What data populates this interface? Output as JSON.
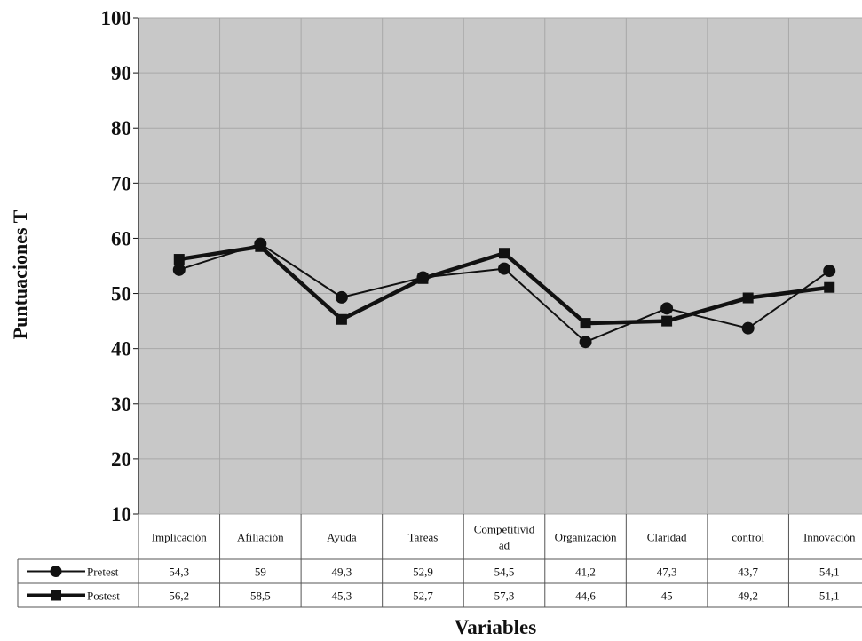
{
  "chart_data": {
    "type": "line",
    "ylabel": "Puntuaciones T",
    "xlabel": "Variables",
    "ylim": [
      10,
      100
    ],
    "yticks": [
      10,
      20,
      30,
      40,
      50,
      60,
      70,
      80,
      90,
      100
    ],
    "grid": true,
    "legend": "data-table-left",
    "categories": [
      [
        "Implicación"
      ],
      [
        "Afiliación"
      ],
      [
        "Ayuda"
      ],
      [
        "Tareas"
      ],
      [
        "Competitivid",
        "ad"
      ],
      [
        "Organización"
      ],
      [
        "Claridad"
      ],
      [
        "control"
      ],
      [
        "Innovación"
      ]
    ],
    "series": [
      {
        "name": "Pretest",
        "marker": "circle",
        "values": [
          54.3,
          59,
          49.3,
          52.9,
          54.5,
          41.2,
          47.3,
          43.7,
          54.1
        ],
        "labels": [
          "54,3",
          "59",
          "49,3",
          "52,9",
          "54,5",
          "41,2",
          "47,3",
          "43,7",
          "54,1"
        ]
      },
      {
        "name": "Postest",
        "marker": "square",
        "values": [
          56.2,
          58.5,
          45.3,
          52.7,
          57.3,
          44.6,
          45,
          49.2,
          51.1
        ],
        "labels": [
          "56,2",
          "58,5",
          "45,3",
          "52,7",
          "57,3",
          "44,6",
          "45",
          "49,2",
          "51,1"
        ]
      }
    ],
    "colors": {
      "plot_bg": "#c8c8c8",
      "line": "#111111",
      "grid": "#a8a8a8"
    }
  }
}
